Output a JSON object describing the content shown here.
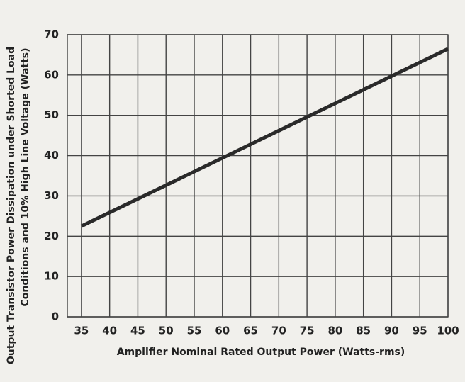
{
  "chart_data": {
    "type": "line",
    "x_label": "Amplifier Nominal Rated Output Power (Watts-rms)",
    "y_label": [
      "Output Transistor Power Dissipation under Shorted Load",
      "Conditions and 10% High Line Voltage (Watts)"
    ],
    "series": [
      {
        "color": "#2a2a2a",
        "x": [
          35,
          100
        ],
        "values": [
          22.5,
          66.5
        ]
      }
    ],
    "xlim": [
      32.5,
      100
    ],
    "xticks": [
      35,
      40,
      45,
      50,
      55,
      60,
      65,
      70,
      75,
      80,
      85,
      90,
      95,
      100
    ],
    "ylim": [
      0,
      70
    ],
    "yticks": [
      0,
      10,
      20,
      30,
      40,
      50,
      60,
      70
    ],
    "grid": true
  }
}
